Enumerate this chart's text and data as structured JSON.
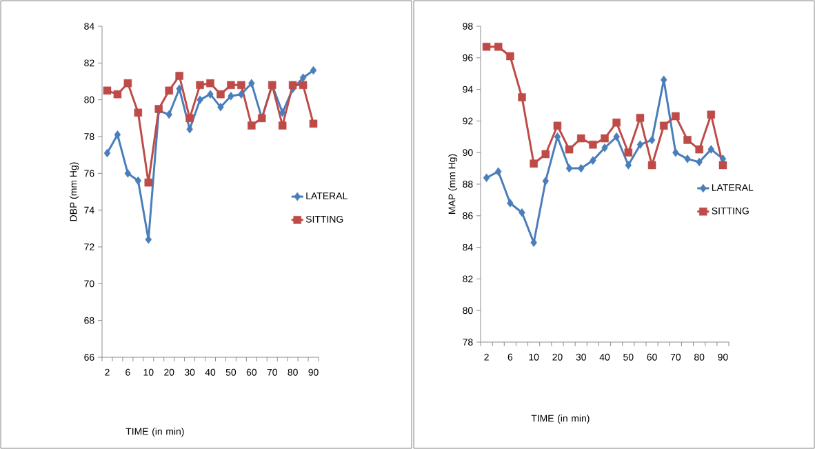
{
  "chart_data": [
    {
      "type": "line",
      "xlabel": "TIME (in min)",
      "ylabel": "DBP (mm Hg)",
      "categories": [
        "2",
        null,
        "6",
        null,
        "10",
        null,
        "20",
        null,
        "30",
        null,
        "40",
        null,
        "50",
        null,
        "60",
        null,
        "70",
        null,
        "80",
        null,
        "90"
      ],
      "series": [
        {
          "name": "LATERAL",
          "color": "#4a7ebb",
          "marker": "diamond",
          "values": [
            77.1,
            78.1,
            76.0,
            75.6,
            72.4,
            79.4,
            79.2,
            80.6,
            78.4,
            80.0,
            80.3,
            79.6,
            80.2,
            80.3,
            80.9,
            79.0,
            80.8,
            79.3,
            80.6,
            81.2,
            81.6
          ]
        },
        {
          "name": "SITTING",
          "color": "#be4b48",
          "marker": "square",
          "values": [
            80.5,
            80.3,
            80.9,
            79.3,
            75.5,
            79.5,
            80.5,
            81.3,
            79.0,
            80.8,
            80.9,
            80.3,
            80.8,
            80.8,
            78.6,
            79.0,
            80.8,
            78.6,
            80.8,
            80.8,
            78.7
          ]
        }
      ],
      "ylim": [
        66,
        84
      ],
      "yticks": [
        66,
        68,
        70,
        72,
        74,
        76,
        78,
        80,
        82,
        84
      ],
      "legend": "right",
      "grid": false
    },
    {
      "type": "line",
      "xlabel": "TIME (in min)",
      "ylabel": "MAP (mm Hg)",
      "categories": [
        "2",
        null,
        "6",
        null,
        "10",
        null,
        "20",
        null,
        "30",
        null,
        "40",
        null,
        "50",
        null,
        "60",
        null,
        "70",
        null,
        "80",
        null,
        "90"
      ],
      "series": [
        {
          "name": "LATERAL",
          "color": "#4a7ebb",
          "marker": "diamond",
          "values": [
            88.4,
            88.8,
            86.8,
            86.2,
            84.3,
            88.2,
            91.0,
            89.0,
            89.0,
            89.5,
            90.3,
            91.0,
            89.2,
            90.5,
            90.8,
            94.6,
            90.0,
            89.6,
            89.4,
            90.2,
            89.6
          ]
        },
        {
          "name": "SITTING",
          "color": "#be4b48",
          "marker": "square",
          "values": [
            96.7,
            96.7,
            96.1,
            93.5,
            89.3,
            89.9,
            91.7,
            90.2,
            90.9,
            90.5,
            90.9,
            91.9,
            90.0,
            92.2,
            89.2,
            91.7,
            92.3,
            90.8,
            90.2,
            92.4,
            89.2
          ]
        }
      ],
      "ylim": [
        78,
        98
      ],
      "yticks": [
        78,
        80,
        82,
        84,
        86,
        88,
        90,
        92,
        94,
        96,
        98
      ],
      "legend": "right",
      "grid": false
    }
  ]
}
